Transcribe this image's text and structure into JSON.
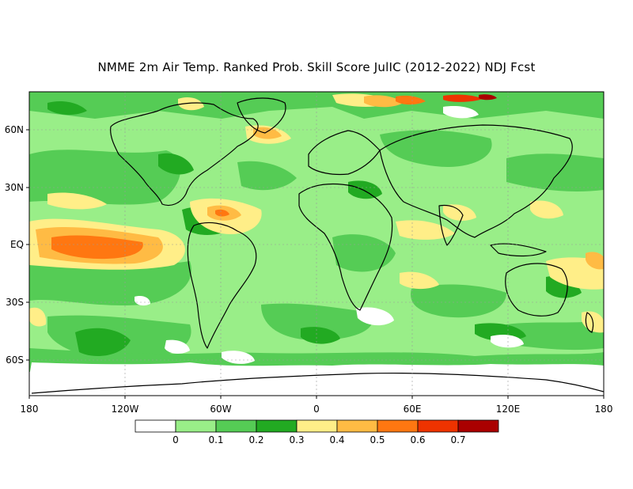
{
  "title": "NMME 2m Air Temp. Ranked Prob. Skill Score JulIC (2012-2022) NDJ Fcst",
  "axes": {
    "y_ticks": [
      "60N",
      "30N",
      "EQ",
      "30S",
      "60S"
    ],
    "x_ticks": [
      "180",
      "120W",
      "60W",
      "0",
      "60E",
      "120E",
      "180"
    ]
  },
  "legend": {
    "colors": [
      "#ffffff",
      "#99ee88",
      "#55cc55",
      "#22aa22",
      "#ffee88",
      "#ffbb44",
      "#ff7711",
      "#ee3300",
      "#aa0000"
    ],
    "labels": [
      "0",
      "0.1",
      "0.2",
      "0.3",
      "0.4",
      "0.5",
      "0.6",
      "0.7"
    ]
  },
  "palette": {
    "land_outline": "#000000",
    "grid": "#999999"
  }
}
